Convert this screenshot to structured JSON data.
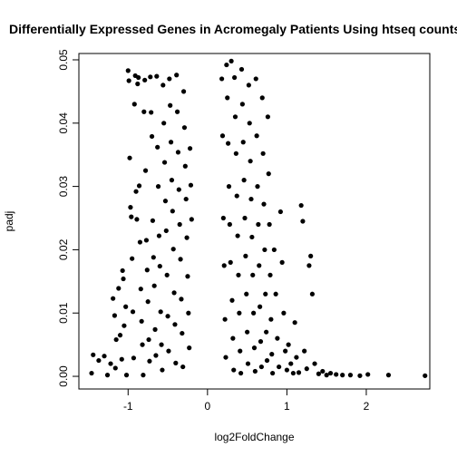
{
  "chart_data": {
    "type": "scatter",
    "title": "Differentially Expressed Genes in Acromegaly Patients Using htseq counts",
    "xlabel": "log2FoldChange",
    "ylabel": "padj",
    "xlim": [
      -1.62,
      2.8
    ],
    "ylim": [
      -0.002,
      0.051
    ],
    "x_ticks": [
      -1,
      0,
      1,
      2
    ],
    "x_tick_labels": [
      "-1",
      "0",
      "1",
      "2"
    ],
    "y_ticks": [
      0.0,
      0.01,
      0.02,
      0.03,
      0.04,
      0.05
    ],
    "y_tick_labels": [
      "0.00",
      "0.01",
      "0.02",
      "0.03",
      "0.04",
      "0.05"
    ],
    "grid": false,
    "legend": "none",
    "point_color": "#000000",
    "points": [
      [
        -1.46,
        0.0005
      ],
      [
        -1.44,
        0.0034
      ],
      [
        -1.37,
        0.0025
      ],
      [
        -1.3,
        0.0032
      ],
      [
        -1.26,
        0.0002
      ],
      [
        -1.22,
        0.002
      ],
      [
        -1.19,
        0.0123
      ],
      [
        -1.17,
        0.0096
      ],
      [
        -1.16,
        0.0013
      ],
      [
        -1.15,
        0.0058
      ],
      [
        -1.12,
        0.0139
      ],
      [
        -1.1,
        0.0065
      ],
      [
        -1.08,
        0.0027
      ],
      [
        -1.07,
        0.0167
      ],
      [
        -1.06,
        0.0154
      ],
      [
        -1.05,
        0.008
      ],
      [
        -1.03,
        0.011
      ],
      [
        -1.02,
        0.0002
      ],
      [
        -1.0,
        0.0483
      ],
      [
        -0.99,
        0.0467
      ],
      [
        -0.98,
        0.0345
      ],
      [
        -0.97,
        0.0267
      ],
      [
        -0.96,
        0.0252
      ],
      [
        -0.95,
        0.0186
      ],
      [
        -0.94,
        0.0102
      ],
      [
        -0.93,
        0.0029
      ],
      [
        -0.92,
        0.043
      ],
      [
        -0.91,
        0.0475
      ],
      [
        -0.9,
        0.0292
      ],
      [
        -0.89,
        0.0248
      ],
      [
        -0.88,
        0.0462
      ],
      [
        -0.87,
        0.0472
      ],
      [
        -0.86,
        0.0301
      ],
      [
        -0.85,
        0.0212
      ],
      [
        -0.84,
        0.0138
      ],
      [
        -0.83,
        0.0087
      ],
      [
        -0.82,
        0.005
      ],
      [
        -0.81,
        0.0002
      ],
      [
        -0.8,
        0.0418
      ],
      [
        -0.79,
        0.0468
      ],
      [
        -0.78,
        0.0325
      ],
      [
        -0.77,
        0.0215
      ],
      [
        -0.76,
        0.0168
      ],
      [
        -0.75,
        0.0118
      ],
      [
        -0.74,
        0.0058
      ],
      [
        -0.73,
        0.0024
      ],
      [
        -0.72,
        0.0473
      ],
      [
        -0.71,
        0.0417
      ],
      [
        -0.7,
        0.0379
      ],
      [
        -0.69,
        0.0246
      ],
      [
        -0.68,
        0.0188
      ],
      [
        -0.67,
        0.0143
      ],
      [
        -0.66,
        0.0074
      ],
      [
        -0.65,
        0.0033
      ],
      [
        -0.64,
        0.0474
      ],
      [
        -0.63,
        0.0362
      ],
      [
        -0.62,
        0.03
      ],
      [
        -0.61,
        0.0222
      ],
      [
        -0.6,
        0.0174
      ],
      [
        -0.59,
        0.0102
      ],
      [
        -0.58,
        0.005
      ],
      [
        -0.57,
        0.001
      ],
      [
        -0.56,
        0.046
      ],
      [
        -0.55,
        0.04
      ],
      [
        -0.54,
        0.0338
      ],
      [
        -0.53,
        0.0277
      ],
      [
        -0.52,
        0.023
      ],
      [
        -0.51,
        0.016
      ],
      [
        -0.5,
        0.0095
      ],
      [
        -0.49,
        0.004
      ],
      [
        -0.48,
        0.047
      ],
      [
        -0.47,
        0.0428
      ],
      [
        -0.46,
        0.037
      ],
      [
        -0.45,
        0.031
      ],
      [
        -0.44,
        0.0261
      ],
      [
        -0.43,
        0.0201
      ],
      [
        -0.42,
        0.0132
      ],
      [
        -0.41,
        0.0082
      ],
      [
        -0.4,
        0.0021
      ],
      [
        -0.39,
        0.0476
      ],
      [
        -0.38,
        0.0418
      ],
      [
        -0.37,
        0.0354
      ],
      [
        -0.36,
        0.0295
      ],
      [
        -0.35,
        0.024
      ],
      [
        -0.34,
        0.0185
      ],
      [
        -0.33,
        0.0122
      ],
      [
        -0.32,
        0.0068
      ],
      [
        -0.31,
        0.0015
      ],
      [
        -0.3,
        0.045
      ],
      [
        -0.29,
        0.0393
      ],
      [
        -0.28,
        0.0332
      ],
      [
        -0.27,
        0.028
      ],
      [
        -0.26,
        0.0219
      ],
      [
        -0.25,
        0.0158
      ],
      [
        -0.24,
        0.01
      ],
      [
        -0.23,
        0.0045
      ],
      [
        -0.22,
        0.036
      ],
      [
        -0.21,
        0.0302
      ],
      [
        -0.2,
        0.0248
      ],
      [
        0.18,
        0.047
      ],
      [
        0.19,
        0.038
      ],
      [
        0.2,
        0.025
      ],
      [
        0.21,
        0.0175
      ],
      [
        0.22,
        0.009
      ],
      [
        0.23,
        0.003
      ],
      [
        0.24,
        0.0492
      ],
      [
        0.25,
        0.044
      ],
      [
        0.26,
        0.0368
      ],
      [
        0.27,
        0.03
      ],
      [
        0.28,
        0.024
      ],
      [
        0.29,
        0.018
      ],
      [
        0.3,
        0.0498
      ],
      [
        0.31,
        0.012
      ],
      [
        0.32,
        0.006
      ],
      [
        0.33,
        0.001
      ],
      [
        0.34,
        0.0472
      ],
      [
        0.35,
        0.041
      ],
      [
        0.36,
        0.0352
      ],
      [
        0.37,
        0.0285
      ],
      [
        0.38,
        0.0222
      ],
      [
        0.39,
        0.016
      ],
      [
        0.4,
        0.01
      ],
      [
        0.41,
        0.004
      ],
      [
        0.42,
        0.0005
      ],
      [
        0.43,
        0.0485
      ],
      [
        0.44,
        0.043
      ],
      [
        0.45,
        0.037
      ],
      [
        0.46,
        0.031
      ],
      [
        0.47,
        0.025
      ],
      [
        0.48,
        0.019
      ],
      [
        0.49,
        0.013
      ],
      [
        0.5,
        0.007
      ],
      [
        0.51,
        0.002
      ],
      [
        0.52,
        0.046
      ],
      [
        0.53,
        0.04
      ],
      [
        0.54,
        0.034
      ],
      [
        0.55,
        0.028
      ],
      [
        0.56,
        0.022
      ],
      [
        0.57,
        0.016
      ],
      [
        0.58,
        0.01
      ],
      [
        0.59,
        0.0045
      ],
      [
        0.6,
        0.0008
      ],
      [
        0.61,
        0.047
      ],
      [
        0.62,
        0.038
      ],
      [
        0.63,
        0.03
      ],
      [
        0.64,
        0.024
      ],
      [
        0.65,
        0.0175
      ],
      [
        0.66,
        0.011
      ],
      [
        0.67,
        0.0055
      ],
      [
        0.68,
        0.0015
      ],
      [
        0.69,
        0.044
      ],
      [
        0.7,
        0.0352
      ],
      [
        0.71,
        0.0272
      ],
      [
        0.72,
        0.02
      ],
      [
        0.73,
        0.013
      ],
      [
        0.74,
        0.007
      ],
      [
        0.75,
        0.0025
      ],
      [
        0.76,
        0.041
      ],
      [
        0.77,
        0.032
      ],
      [
        0.78,
        0.024
      ],
      [
        0.79,
        0.016
      ],
      [
        0.8,
        0.009
      ],
      [
        0.81,
        0.0035
      ],
      [
        0.82,
        0.0005
      ],
      [
        0.84,
        0.02
      ],
      [
        0.86,
        0.013
      ],
      [
        0.88,
        0.006
      ],
      [
        0.9,
        0.0015
      ],
      [
        0.92,
        0.026
      ],
      [
        0.94,
        0.018
      ],
      [
        0.96,
        0.01
      ],
      [
        0.98,
        0.004
      ],
      [
        1.0,
        0.001
      ],
      [
        1.02,
        0.005
      ],
      [
        1.05,
        0.002
      ],
      [
        1.08,
        0.0005
      ],
      [
        1.1,
        0.0085
      ],
      [
        1.12,
        0.003
      ],
      [
        1.15,
        0.0006
      ],
      [
        1.18,
        0.027
      ],
      [
        1.2,
        0.0245
      ],
      [
        1.22,
        0.004
      ],
      [
        1.25,
        0.0012
      ],
      [
        1.28,
        0.0175
      ],
      [
        1.3,
        0.019
      ],
      [
        1.32,
        0.013
      ],
      [
        1.35,
        0.002
      ],
      [
        1.4,
        0.0004
      ],
      [
        1.45,
        0.0008
      ],
      [
        1.5,
        0.0002
      ],
      [
        1.55,
        0.0005
      ],
      [
        1.62,
        0.0003
      ],
      [
        1.7,
        0.0002
      ],
      [
        1.8,
        0.0002
      ],
      [
        1.92,
        0.0001
      ],
      [
        2.02,
        0.0003
      ],
      [
        2.28,
        0.0002
      ],
      [
        2.74,
        0.0001
      ]
    ]
  }
}
